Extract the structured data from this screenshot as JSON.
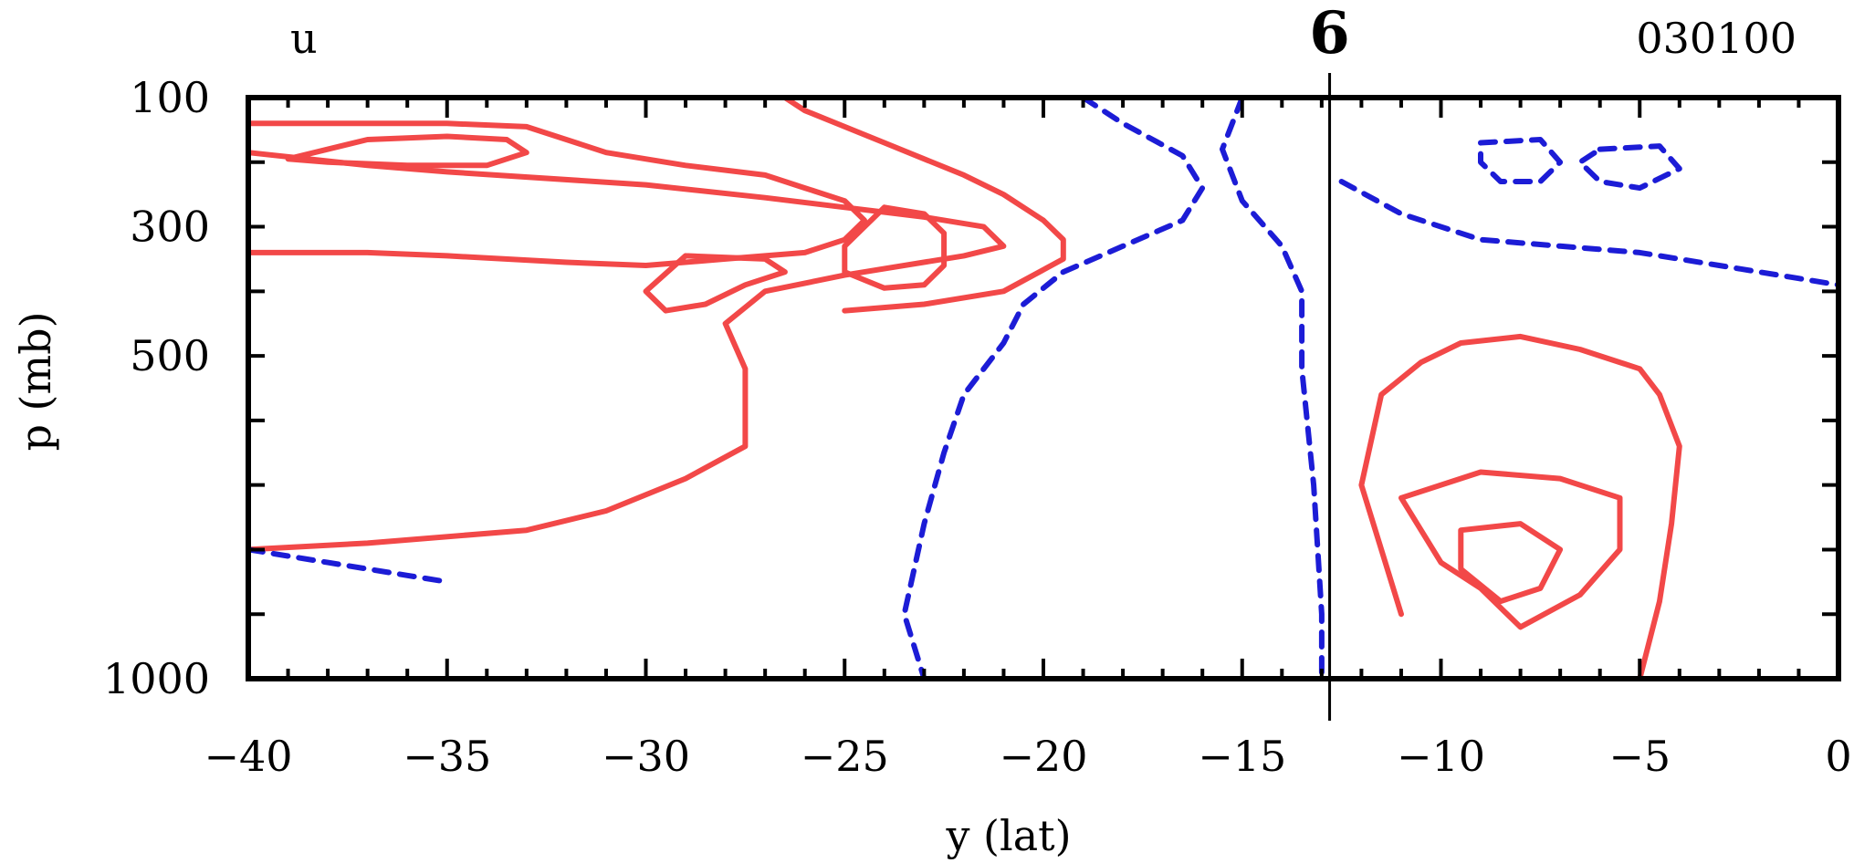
{
  "chart_data": {
    "type": "contour",
    "variable_label": "u",
    "storm_marker": "6",
    "timestamp": "030100",
    "xlabel": "y (lat)",
    "ylabel": "p (mb)",
    "xlim": [
      -40,
      0
    ],
    "ylim": [
      1000,
      100
    ],
    "x_ticks": [
      {
        "value": -40,
        "label": "−40"
      },
      {
        "value": -35,
        "label": "−35"
      },
      {
        "value": -30,
        "label": "−30"
      },
      {
        "value": -25,
        "label": "−25"
      },
      {
        "value": -20,
        "label": "−20"
      },
      {
        "value": -15,
        "label": "−15"
      },
      {
        "value": -10,
        "label": "−10"
      },
      {
        "value": -5,
        "label": "−5"
      },
      {
        "value": 0,
        "label": "0"
      }
    ],
    "y_ticks": [
      {
        "value": 100,
        "label": "100"
      },
      {
        "value": 300,
        "label": "300"
      },
      {
        "value": 500,
        "label": "500"
      },
      {
        "value": 1000,
        "label": "1000"
      }
    ],
    "marker_lat": -12.8,
    "colors": {
      "positive": "#f24848",
      "negative": "#1c1cd6",
      "axis": "#000000"
    },
    "series": [
      {
        "sign": "positive",
        "style": "solid",
        "points": [
          [
            -40,
            185
          ],
          [
            -37,
            205
          ],
          [
            -35,
            215
          ],
          [
            -30,
            235
          ],
          [
            -27,
            255
          ],
          [
            -25,
            270
          ],
          [
            -23,
            285
          ],
          [
            -21.5,
            300
          ],
          [
            -21,
            330
          ],
          [
            -22,
            345
          ],
          [
            -25,
            375
          ],
          [
            -27,
            400
          ],
          [
            -28,
            450
          ],
          [
            -27.5,
            520
          ],
          [
            -27.5,
            640
          ],
          [
            -29,
            690
          ],
          [
            -31,
            740
          ],
          [
            -33,
            770
          ],
          [
            -37,
            790
          ],
          [
            -40,
            800
          ]
        ]
      },
      {
        "sign": "positive",
        "style": "solid",
        "points": [
          [
            -40,
            140
          ],
          [
            -35,
            140
          ],
          [
            -33,
            145
          ],
          [
            -32,
            165
          ],
          [
            -31,
            185
          ],
          [
            -29,
            205
          ],
          [
            -27,
            220
          ],
          [
            -26,
            240
          ],
          [
            -25,
            260
          ],
          [
            -24.5,
            290
          ],
          [
            -25,
            320
          ],
          [
            -26,
            340
          ],
          [
            -28,
            350
          ],
          [
            -30,
            360
          ],
          [
            -32,
            355
          ],
          [
            -35,
            345
          ],
          [
            -37,
            340
          ],
          [
            -40,
            340
          ]
        ]
      },
      {
        "sign": "positive",
        "style": "solid",
        "points": [
          [
            -37,
            165
          ],
          [
            -35,
            160
          ],
          [
            -33.5,
            165
          ],
          [
            -33,
            185
          ],
          [
            -34,
            205
          ],
          [
            -36,
            205
          ],
          [
            -38,
            200
          ],
          [
            -39,
            195
          ],
          [
            -37,
            165
          ]
        ]
      },
      {
        "sign": "positive",
        "style": "solid",
        "points": [
          [
            -29,
            345
          ],
          [
            -27,
            350
          ],
          [
            -26.5,
            370
          ],
          [
            -27.5,
            390
          ],
          [
            -28.5,
            420
          ],
          [
            -29.5,
            430
          ],
          [
            -30,
            400
          ],
          [
            -29,
            345
          ]
        ]
      },
      {
        "sign": "positive",
        "style": "solid",
        "points": [
          [
            -25,
            430
          ],
          [
            -23,
            420
          ],
          [
            -21,
            400
          ],
          [
            -19.5,
            350
          ],
          [
            -19.5,
            320
          ],
          [
            -20,
            290
          ],
          [
            -21,
            250
          ],
          [
            -22,
            220
          ],
          [
            -24,
            170
          ],
          [
            -26,
            120
          ],
          [
            -26.5,
            100
          ]
        ]
      },
      {
        "sign": "positive",
        "style": "solid",
        "points": [
          [
            -24,
            270
          ],
          [
            -23,
            280
          ],
          [
            -22.5,
            310
          ],
          [
            -22.5,
            360
          ],
          [
            -23,
            390
          ],
          [
            -24,
            395
          ],
          [
            -25,
            370
          ],
          [
            -25,
            330
          ],
          [
            -24.5,
            300
          ],
          [
            -24,
            270
          ]
        ]
      },
      {
        "sign": "positive",
        "style": "solid",
        "points": [
          [
            -11,
            900
          ],
          [
            -11.5,
            800
          ],
          [
            -12,
            700
          ],
          [
            -11.5,
            560
          ],
          [
            -10.5,
            510
          ],
          [
            -9.5,
            480
          ],
          [
            -8,
            470
          ],
          [
            -6.5,
            490
          ],
          [
            -5,
            520
          ],
          [
            -4.5,
            560
          ],
          [
            -4,
            640
          ],
          [
            -4.2,
            760
          ],
          [
            -4.5,
            880
          ],
          [
            -5,
            1000
          ]
        ]
      },
      {
        "sign": "positive",
        "style": "solid",
        "points": [
          [
            -11,
            720
          ],
          [
            -9,
            680
          ],
          [
            -7,
            690
          ],
          [
            -5.5,
            720
          ],
          [
            -5.5,
            800
          ],
          [
            -6.5,
            870
          ],
          [
            -8,
            920
          ],
          [
            -9,
            860
          ],
          [
            -10,
            820
          ],
          [
            -11,
            720
          ]
        ]
      },
      {
        "sign": "positive",
        "style": "solid",
        "points": [
          [
            -9.5,
            770
          ],
          [
            -8,
            760
          ],
          [
            -7,
            800
          ],
          [
            -7.5,
            860
          ],
          [
            -8.5,
            880
          ],
          [
            -9.5,
            830
          ],
          [
            -9.5,
            770
          ]
        ]
      },
      {
        "sign": "negative",
        "style": "dashed",
        "points": [
          [
            -19,
            100
          ],
          [
            -18,
            140
          ],
          [
            -16.5,
            190
          ],
          [
            -16,
            240
          ],
          [
            -16.5,
            290
          ],
          [
            -18,
            330
          ],
          [
            -19.5,
            370
          ],
          [
            -20.5,
            420
          ],
          [
            -21,
            480
          ],
          [
            -22,
            560
          ],
          [
            -22.5,
            650
          ],
          [
            -23,
            760
          ],
          [
            -23.5,
            900
          ],
          [
            -23,
            1000
          ]
        ]
      },
      {
        "sign": "negative",
        "style": "dashed",
        "points": [
          [
            -15,
            100
          ],
          [
            -15.5,
            180
          ],
          [
            -15,
            260
          ],
          [
            -14,
            330
          ],
          [
            -13.5,
            400
          ],
          [
            -13.5,
            520
          ],
          [
            -13.2,
            700
          ],
          [
            -13,
            900
          ],
          [
            -13,
            1000
          ]
        ]
      },
      {
        "sign": "negative",
        "style": "dashed",
        "points": [
          [
            -9,
            170
          ],
          [
            -7.5,
            165
          ],
          [
            -7,
            200
          ],
          [
            -7.5,
            230
          ],
          [
            -8.5,
            230
          ],
          [
            -9,
            200
          ],
          [
            -9,
            170
          ]
        ]
      },
      {
        "sign": "negative",
        "style": "dashed",
        "points": [
          [
            -6,
            180
          ],
          [
            -4.5,
            175
          ],
          [
            -4,
            210
          ],
          [
            -5,
            240
          ],
          [
            -6,
            230
          ],
          [
            -6.5,
            200
          ],
          [
            -6,
            180
          ]
        ]
      },
      {
        "sign": "negative",
        "style": "dashed",
        "points": [
          [
            -12.5,
            230
          ],
          [
            -11,
            280
          ],
          [
            -9,
            320
          ],
          [
            -7,
            330
          ],
          [
            -5,
            340
          ],
          [
            -3,
            360
          ],
          [
            -1,
            380
          ],
          [
            0,
            390
          ]
        ]
      },
      {
        "sign": "negative",
        "style": "dashed",
        "points": [
          [
            -40,
            800
          ],
          [
            -38,
            820
          ],
          [
            -36,
            840
          ],
          [
            -35,
            850
          ]
        ]
      }
    ]
  }
}
